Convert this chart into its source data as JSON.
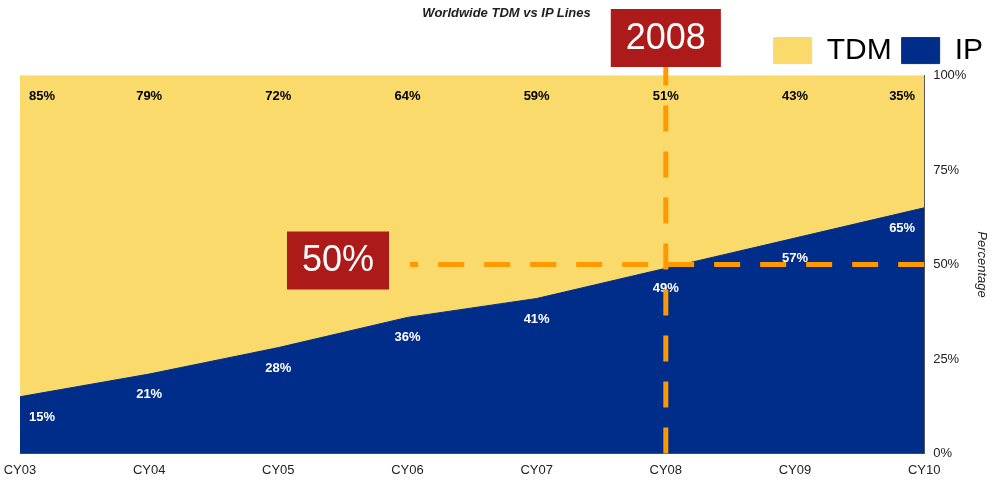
{
  "chart_data": {
    "type": "area",
    "title": "Worldwide TDM vs IP Lines",
    "ylabel": "Percentage",
    "categories": [
      "CY03",
      "CY04",
      "CY05",
      "CY06",
      "CY07",
      "CY08",
      "CY09",
      "CY10"
    ],
    "stacked": true,
    "series": [
      {
        "name": "IP",
        "color": "#002d8a",
        "values": [
          15,
          21,
          28,
          36,
          41,
          49,
          57,
          65
        ],
        "value_labels": [
          "15%",
          "21%",
          "28%",
          "36%",
          "41%",
          "49%",
          "57%",
          "65%"
        ]
      },
      {
        "name": "TDM",
        "color": "#f9da6b",
        "values": [
          85,
          79,
          72,
          64,
          59,
          51,
          43,
          35
        ],
        "value_labels": [
          "85%",
          "79%",
          "72%",
          "64%",
          "59%",
          "51%",
          "43%",
          "35%"
        ]
      }
    ],
    "ylim": [
      0,
      100
    ],
    "yticks": [
      {
        "value": 0,
        "label": "0%"
      },
      {
        "value": 25,
        "label": "25%"
      },
      {
        "value": 50,
        "label": "50%"
      },
      {
        "value": 75,
        "label": "75%"
      },
      {
        "value": 100,
        "label": "100%"
      }
    ],
    "legend": "top right",
    "grid": false,
    "marker": "none",
    "ref_lines": [
      {
        "axis": "x",
        "value": "CY08",
        "label": "2008",
        "color": "#ff9900",
        "line_style": "dashed"
      },
      {
        "axis": "y",
        "value": 50,
        "label": "50%",
        "color": "#ff9900",
        "line_style": "dashed"
      }
    ]
  }
}
